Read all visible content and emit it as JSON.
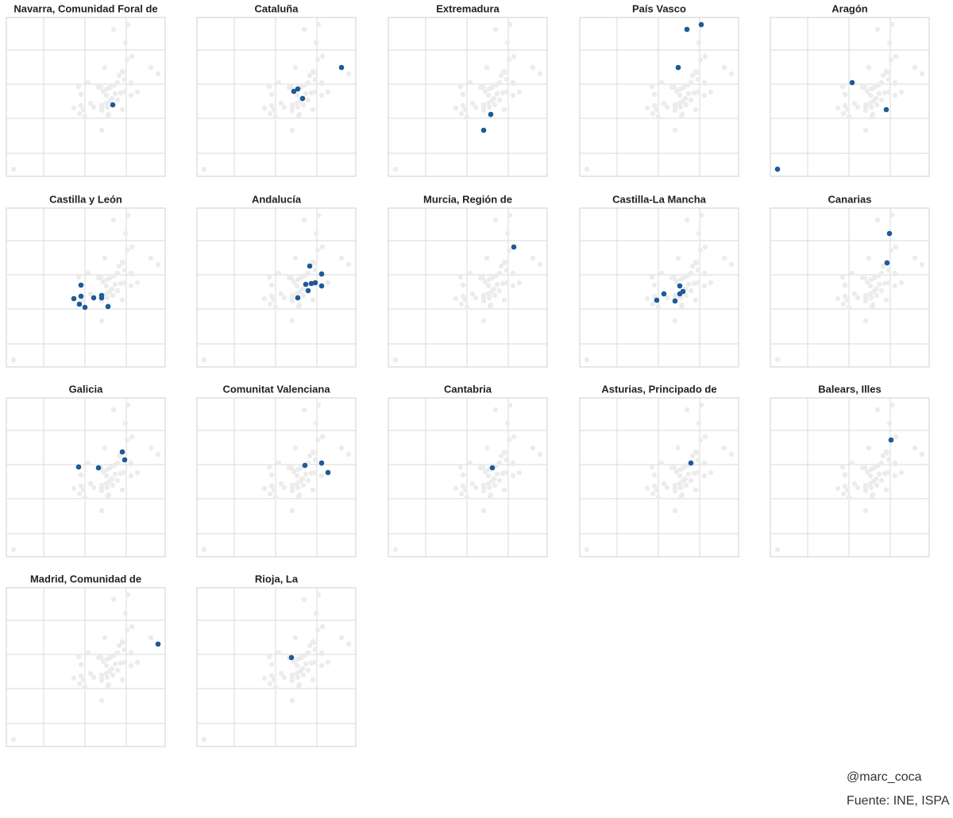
{
  "chart_data": {
    "type": "scatter",
    "xlim": [
      0,
      100
    ],
    "ylim": [
      0,
      100
    ],
    "xticks": [
      23.5,
      49.5,
      75.5
    ],
    "yticks": [
      14.5,
      36.5,
      58,
      79.5
    ],
    "grid": true,
    "color": "#1f5a96",
    "background_color": "#ececec",
    "series": [
      {
        "name": "Navarra, Comunidad Foral de",
        "x": [
          67
        ],
        "y": [
          45
        ]
      },
      {
        "name": "Cataluña",
        "x": [
          91,
          63.5,
          61,
          66.5
        ],
        "y": [
          68.5,
          55,
          53.5,
          49
        ]
      },
      {
        "name": "Extremadura",
        "x": [
          64.5,
          60
        ],
        "y": [
          39,
          29
        ]
      },
      {
        "name": "País Vasco",
        "x": [
          67.5,
          76.5,
          62
        ],
        "y": [
          92.5,
          95.5,
          68.5
        ]
      },
      {
        "name": "Aragón",
        "x": [
          51.5,
          73,
          4.5
        ],
        "y": [
          59,
          42,
          4.5
        ]
      },
      {
        "name": "Castilla y León",
        "x": [
          47,
          47,
          42.5,
          46,
          49.5,
          55,
          60,
          60,
          64
        ],
        "y": [
          51.5,
          44.5,
          43,
          39.5,
          37.5,
          43.5,
          45,
          43.5,
          38
        ]
      },
      {
        "name": "Andalucía",
        "x": [
          71,
          78.5,
          72,
          68.5,
          78.5,
          70,
          63.5,
          74.5
        ],
        "y": [
          63.5,
          58.5,
          52.5,
          52,
          51,
          48,
          43.5,
          53
        ]
      },
      {
        "name": "Murcia, Región de",
        "x": [
          79
        ],
        "y": [
          75.5
        ]
      },
      {
        "name": "Castilla-La Mancha",
        "x": [
          48.5,
          53,
          60,
          63,
          65,
          63
        ],
        "y": [
          42,
          46,
          41.5,
          51,
          47.5,
          46
        ]
      },
      {
        "name": "Canarias",
        "x": [
          75,
          73.5
        ],
        "y": [
          84,
          65.5
        ]
      },
      {
        "name": "Galicia",
        "x": [
          73,
          74.5,
          45.5,
          58
        ],
        "y": [
          66,
          61,
          56.5,
          56
        ]
      },
      {
        "name": "Comunitat Valenciana",
        "x": [
          68,
          78.5,
          82.5
        ],
        "y": [
          57.5,
          59,
          53
        ]
      },
      {
        "name": "Cantabria",
        "x": [
          65.5
        ],
        "y": [
          56
        ]
      },
      {
        "name": "Asturias, Principado de",
        "x": [
          70
        ],
        "y": [
          59
        ]
      },
      {
        "name": "Balears, Illes",
        "x": [
          76
        ],
        "y": [
          73.5
        ]
      },
      {
        "name": "Madrid, Comunidad de",
        "x": [
          95.5
        ],
        "y": [
          64.5
        ]
      },
      {
        "name": "Rioja, La",
        "x": [
          59.5
        ],
        "y": [
          56
        ]
      }
    ],
    "annotations": [
      "@marc_coca",
      "Fuente: INE, ISPA"
    ]
  }
}
